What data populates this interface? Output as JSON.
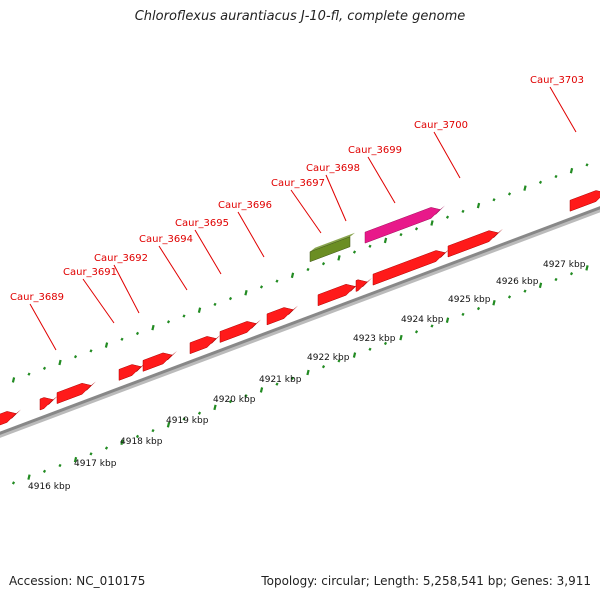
{
  "title": "Chloroflexus aurantiacus J-10-fl, complete genome",
  "footer": {
    "accession_label": "Accession:",
    "accession": "NC_010175",
    "topology_label": "Topology:",
    "topology": "circular",
    "length_label": "Length:",
    "length": "5,258,541 bp",
    "genes_label": "Genes:",
    "genes": "3,911"
  },
  "colors": {
    "cds": "#ff1a1a",
    "cds_dark": "#b00000",
    "rrna": "#e8198a",
    "trna": "#6b8e23",
    "tick": "#228b22",
    "backbone": "#888888",
    "label": "#e00000"
  },
  "scale": {
    "unit": "kbp",
    "labels": [
      "4916 kbp",
      "4917 kbp",
      "4918 kbp",
      "4919 kbp",
      "4920 kbp",
      "4921 kbp",
      "4922 kbp",
      "4923 kbp",
      "4924 kbp",
      "4925 kbp",
      "4926 kbp",
      "4927 kbp"
    ]
  },
  "genes": [
    {
      "name": "Caur_3689"
    },
    {
      "name": "Caur_3691"
    },
    {
      "name": "Caur_3692"
    },
    {
      "name": "Caur_3694"
    },
    {
      "name": "Caur_3695"
    },
    {
      "name": "Caur_3696"
    },
    {
      "name": "Caur_3697"
    },
    {
      "name": "Caur_3698"
    },
    {
      "name": "Caur_3699"
    },
    {
      "name": "Caur_3700"
    },
    {
      "name": "Caur_3703"
    }
  ]
}
